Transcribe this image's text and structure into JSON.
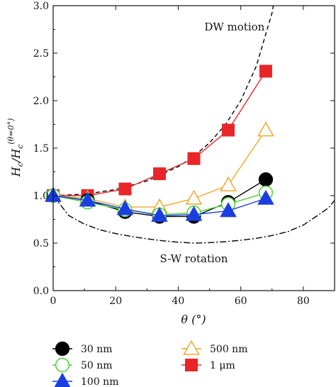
{
  "chart_data": {
    "type": "line",
    "title": "",
    "xlabel": "θ (°)",
    "ylabel_main": "H",
    "ylabel_sub": "c",
    "ylabel_den": "/H",
    "ylabel_den_sub": "c",
    "ylabel_sup": "(θ=0°)",
    "xlim": [
      0,
      90
    ],
    "ylim": [
      0,
      3.0
    ],
    "xticks": [
      0,
      20,
      40,
      60,
      80
    ],
    "yticks": [
      0.0,
      0.5,
      1.0,
      1.5,
      2.0,
      2.5,
      3.0
    ],
    "xtick_labels": [
      "0",
      "20",
      "40",
      "60",
      "80"
    ],
    "ytick_labels": [
      "0.0",
      "0.5",
      "1.0",
      "1.5",
      "2.0",
      "2.5",
      "3.0"
    ],
    "grid": false,
    "legend_position": "bottom",
    "series": [
      {
        "name": "30 nm",
        "marker": "circle-filled",
        "color": "#000000",
        "x": [
          0,
          11,
          23,
          34,
          45,
          56,
          68
        ],
        "y": [
          1.0,
          0.95,
          0.83,
          0.78,
          0.78,
          0.93,
          1.17
        ]
      },
      {
        "name": "50 nm",
        "marker": "circle-open",
        "color": "#4cd137",
        "x": [
          0,
          11,
          23,
          34,
          45,
          56,
          68
        ],
        "y": [
          1.0,
          0.93,
          0.85,
          0.8,
          0.82,
          0.91,
          1.03
        ]
      },
      {
        "name": "100 nm",
        "marker": "triangle-filled",
        "color": "#1a3fe0",
        "x": [
          0,
          11,
          23,
          34,
          45,
          56,
          68
        ],
        "y": [
          1.0,
          0.95,
          0.86,
          0.79,
          0.8,
          0.84,
          0.97
        ]
      },
      {
        "name": "500 nm",
        "marker": "triangle-open",
        "color": "#f0a830",
        "x": [
          0,
          11,
          23,
          34,
          45,
          56,
          68
        ],
        "y": [
          1.0,
          0.97,
          0.88,
          0.88,
          0.97,
          1.11,
          1.69
        ]
      },
      {
        "name": "1 μm",
        "marker": "square-filled",
        "color": "#e8262a",
        "x": [
          0,
          11,
          23,
          34,
          45,
          56,
          68
        ],
        "y": [
          1.0,
          1.0,
          1.07,
          1.23,
          1.39,
          1.69,
          2.31
        ]
      }
    ],
    "reference_curves": [
      {
        "name": "DW motion",
        "style": "dashed",
        "color": "#000000",
        "x": [
          0,
          10,
          20,
          30,
          40,
          45,
          50,
          55,
          60,
          65,
          70,
          75
        ],
        "y": [
          1.0,
          1.015,
          1.064,
          1.155,
          1.305,
          1.414,
          1.556,
          1.743,
          2.0,
          2.366,
          2.924,
          3.864
        ]
      },
      {
        "name": "S-W rotation",
        "style": "dashdot",
        "color": "#000000",
        "x": [
          0,
          5,
          10,
          15,
          20,
          25,
          30,
          35,
          40,
          45,
          50,
          55,
          60,
          65,
          70,
          75,
          80,
          85,
          88,
          90
        ],
        "y": [
          1.0,
          0.79,
          0.7,
          0.64,
          0.6,
          0.57,
          0.545,
          0.525,
          0.51,
          0.5,
          0.505,
          0.515,
          0.53,
          0.55,
          0.58,
          0.62,
          0.69,
          0.8,
          0.87,
          0.95
        ]
      }
    ],
    "annotations": [
      {
        "text": "DW motion",
        "x": 58,
        "y": 2.74
      },
      {
        "text": "S-W rotation",
        "x": 45,
        "y": 0.3
      }
    ]
  }
}
